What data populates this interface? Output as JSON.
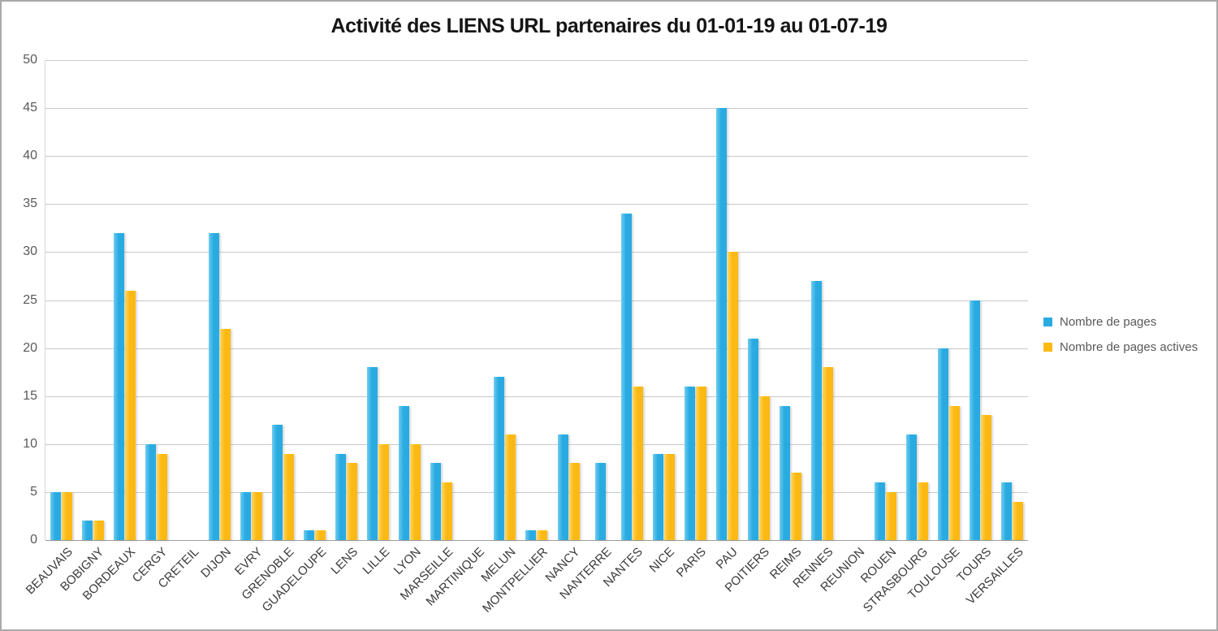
{
  "title": "Activité des LIENS URL partenaires du 01-01-19 au 01-07-19",
  "colors": {
    "series_pages": "#29abe2",
    "series_pages_actives": "#fdb913",
    "gridline": "#c9c9c9",
    "axis_line": "#9e9e9e",
    "tick_text": "#595959",
    "category_text": "#3b3b3b"
  },
  "y_axis": {
    "ticks": [
      "0",
      "5",
      "10",
      "15",
      "20",
      "25",
      "30",
      "35",
      "40",
      "45",
      "50"
    ]
  },
  "legend": {
    "items": [
      "Nombre de pages",
      "Nombre de pages actives"
    ]
  },
  "chart_data": {
    "type": "bar",
    "title": "Activité des LIENS URL partenaires du 01-01-19 au 01-07-19",
    "xlabel": "",
    "ylabel": "",
    "ylim": [
      0,
      50
    ],
    "ytick_step": 5,
    "grid": true,
    "legend_position": "right",
    "categories": [
      "BEAUVAIS",
      "BOBIGNY",
      "BORDEAUX",
      "CERGY",
      "CRETEIL",
      "DIJON",
      "EVRY",
      "GRENOBLE",
      "GUADELOUPE",
      "LENS",
      "LILLE",
      "LYON",
      "MARSEILLE",
      "MARTINIQUE",
      "MELUN",
      "MONTPELLIER",
      "NANCY",
      "NANTERRE",
      "NANTES",
      "NICE",
      "PARIS",
      "PAU",
      "POITIERS",
      "REIMS",
      "RENNES",
      "REUNION",
      "ROUEN",
      "STRASBOURG",
      "TOULOUSE",
      "TOURS",
      "VERSAILLES"
    ],
    "series": [
      {
        "name": "Nombre de pages",
        "color": "#29abe2",
        "values": [
          5,
          2,
          32,
          10,
          0,
          32,
          5,
          12,
          1,
          9,
          18,
          14,
          8,
          0,
          17,
          1,
          11,
          8,
          34,
          9,
          16,
          45,
          21,
          14,
          27,
          0,
          6,
          11,
          20,
          25,
          6
        ]
      },
      {
        "name": "Nombre de pages actives",
        "color": "#fdb913",
        "values": [
          5,
          2,
          26,
          9,
          0,
          22,
          5,
          9,
          1,
          8,
          10,
          10,
          6,
          0,
          11,
          1,
          8,
          0,
          16,
          9,
          16,
          30,
          15,
          7,
          18,
          0,
          5,
          6,
          14,
          13,
          4
        ]
      }
    ]
  }
}
